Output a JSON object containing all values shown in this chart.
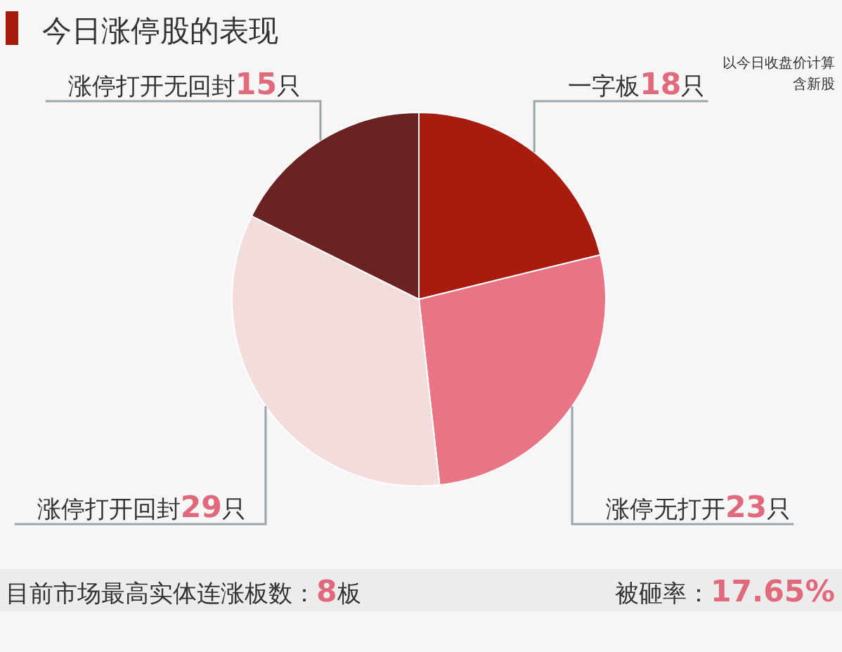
{
  "chart_data": {
    "type": "pie",
    "title": "今日涨停股的表现",
    "categories": [
      "一字板",
      "涨停无打开",
      "涨停打开回封",
      "涨停打开无回封"
    ],
    "values": [
      18,
      23,
      29,
      15
    ],
    "value_labels": [
      "18只",
      "23只",
      "29只",
      "15只"
    ],
    "colors": [
      "#a81c10",
      "#e87585",
      "#f2dcdc",
      "#6b2222"
    ],
    "annotations": [
      "以今日收盘价计算",
      "含新股",
      "目前市场最高实体连涨板数：8板",
      "被砸率：17.65%"
    ]
  }
}
